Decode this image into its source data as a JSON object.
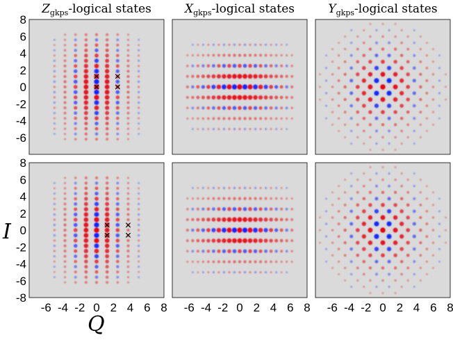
{
  "chart_data": {
    "type": "heatmap",
    "grid": false,
    "colors": {
      "positive": "#e8000a",
      "negative": "#1020ff",
      "background": "#dadada",
      "marker": "#000000"
    },
    "xlabel": "Q",
    "ylabel": "I",
    "xlim": [
      -8,
      8
    ],
    "ylim": [
      -8,
      8
    ],
    "xticks": [
      "-6",
      "-4",
      "-2",
      "0",
      "2",
      "4",
      "6",
      "8"
    ],
    "yticks": [
      "8",
      "6",
      "4",
      "2",
      "0",
      "-2",
      "-4",
      "-6"
    ],
    "yticks_bottom": [
      "8",
      "6",
      "4",
      "2",
      "0",
      "-2",
      "-4",
      "-6",
      "-8"
    ],
    "column_titles": [
      {
        "symbol": "Z",
        "sub": "gkps",
        "rest": "-logical states"
      },
      {
        "symbol": "X",
        "sub": "gkps",
        "rest": "-logical states"
      },
      {
        "symbol": "Y",
        "sub": "gkps",
        "rest": "-logical states"
      }
    ],
    "panels": [
      {
        "row": 0,
        "col": 0,
        "lattice": "Z",
        "markers": [
          [
            0,
            1.25
          ],
          [
            0,
            0
          ],
          [
            2.5,
            1.25
          ],
          [
            2.5,
            0
          ]
        ]
      },
      {
        "row": 0,
        "col": 1,
        "lattice": "X",
        "markers": []
      },
      {
        "row": 0,
        "col": 2,
        "lattice": "Y",
        "markers": []
      },
      {
        "row": 1,
        "col": 0,
        "lattice": "Z",
        "markers": [
          [
            1.25,
            0.6
          ],
          [
            1.25,
            -0.6
          ],
          [
            3.75,
            0.6
          ],
          [
            3.75,
            -0.6
          ]
        ]
      },
      {
        "row": 1,
        "col": 1,
        "lattice": "X",
        "markers": []
      },
      {
        "row": 1,
        "col": 2,
        "lattice": "Y",
        "markers": []
      }
    ]
  }
}
